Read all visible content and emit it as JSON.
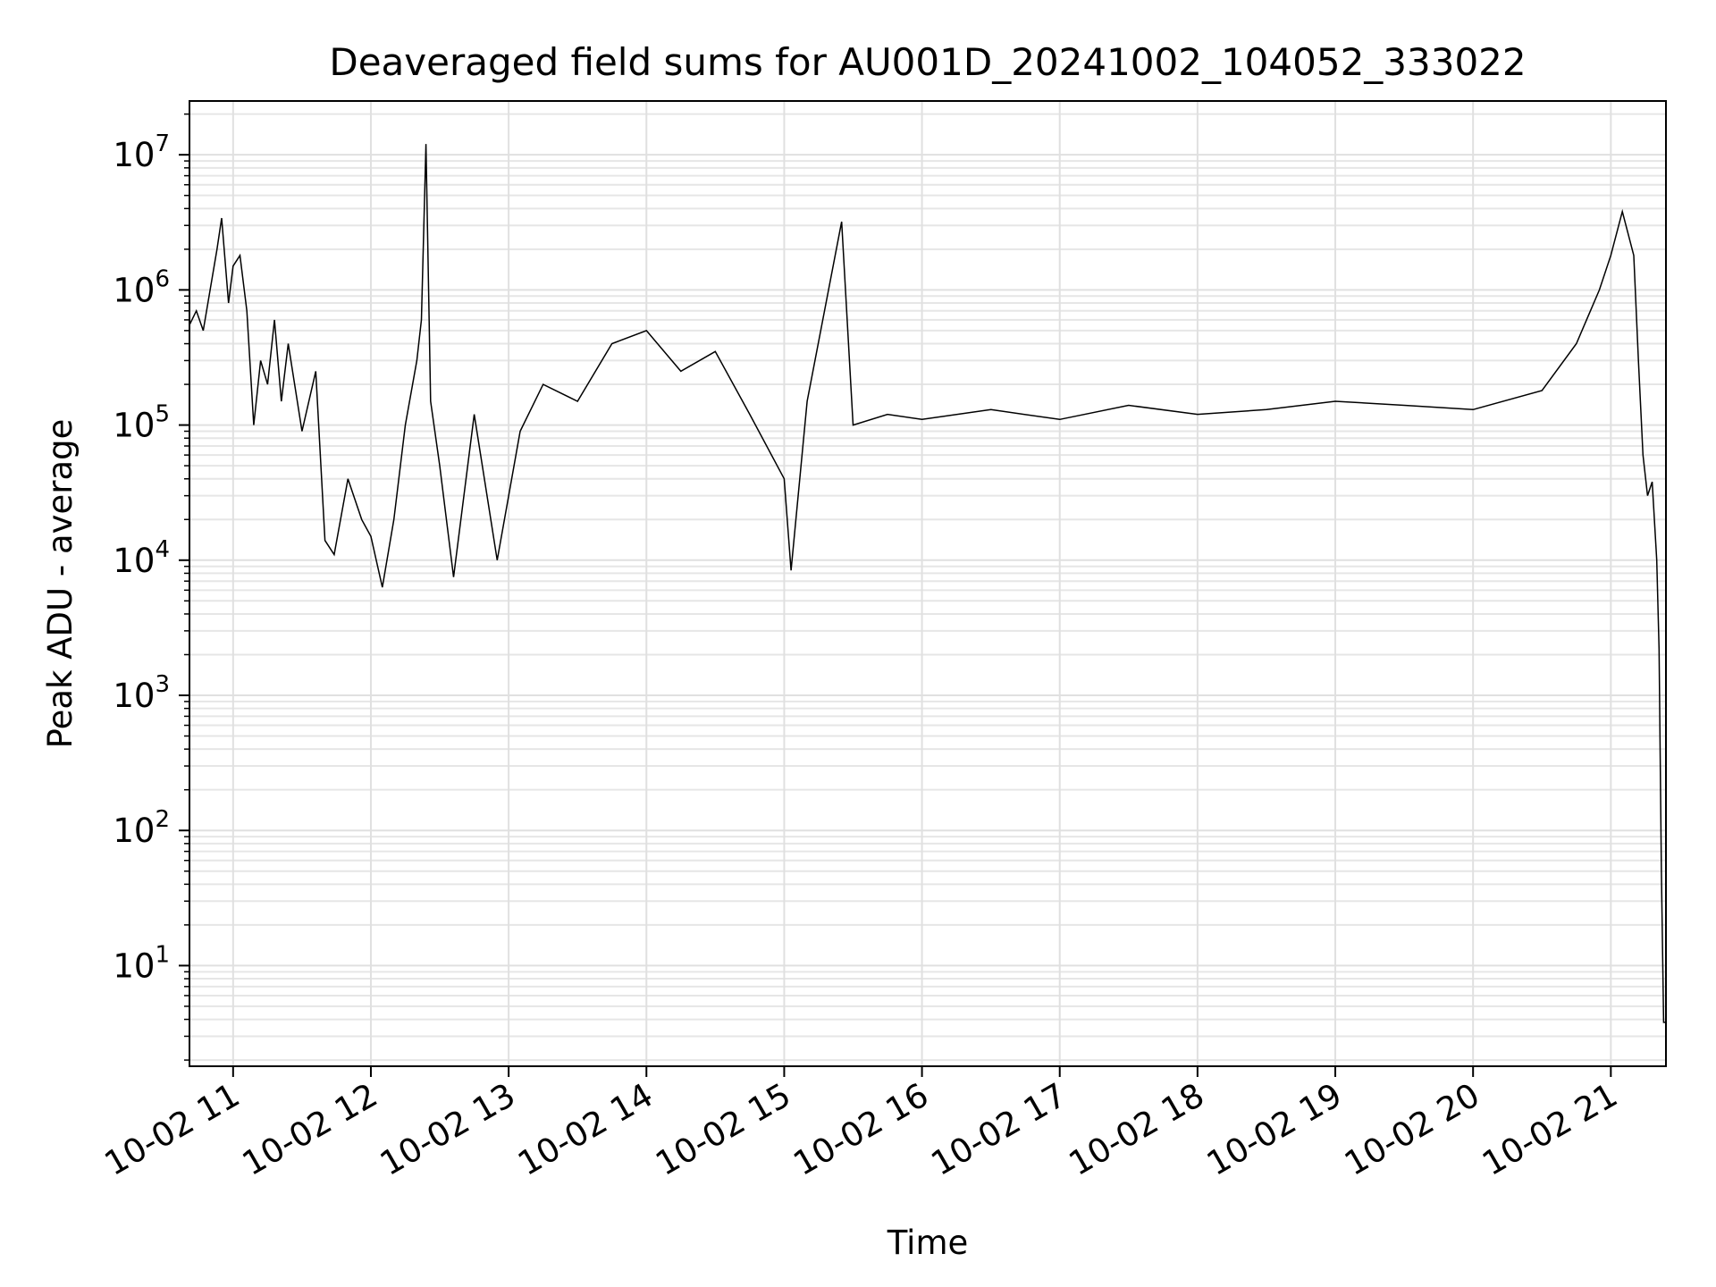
{
  "chart_data": {
    "type": "line",
    "title": "Deaveraged field sums for AU001D_20241002_104052_333022",
    "xlabel": "Time",
    "ylabel": "Peak ADU - average",
    "yscale": "log",
    "grid": true,
    "grid_minor": true,
    "xlim": [
      "2024-10-02 10:41",
      "2024-10-02 21:24"
    ],
    "ylim": [
      1.8,
      25000000
    ],
    "x_ticks": [
      "2024-10-02 11:00",
      "2024-10-02 12:00",
      "2024-10-02 13:00",
      "2024-10-02 14:00",
      "2024-10-02 15:00",
      "2024-10-02 16:00",
      "2024-10-02 17:00",
      "2024-10-02 18:00",
      "2024-10-02 19:00",
      "2024-10-02 20:00",
      "2024-10-02 21:00"
    ],
    "x_tick_labels": [
      "10-02 11",
      "10-02 12",
      "10-02 13",
      "10-02 14",
      "10-02 15",
      "10-02 16",
      "10-02 17",
      "10-02 18",
      "10-02 19",
      "10-02 20",
      "10-02 21"
    ],
    "y_ticks": [
      {
        "base": "10",
        "exp": "1",
        "value": 10
      },
      {
        "base": "10",
        "exp": "2",
        "value": 100
      },
      {
        "base": "10",
        "exp": "3",
        "value": 1000
      },
      {
        "base": "10",
        "exp": "4",
        "value": 10000
      },
      {
        "base": "10",
        "exp": "5",
        "value": 100000
      },
      {
        "base": "10",
        "exp": "6",
        "value": 1000000
      },
      {
        "base": "10",
        "exp": "7",
        "value": 10000000
      }
    ],
    "series": [
      {
        "color": "#000000",
        "points": [
          [
            "2024-10-02 10:41",
            550000
          ],
          [
            "2024-10-02 10:44",
            700000
          ],
          [
            "2024-10-02 10:47",
            500000
          ],
          [
            "2024-10-02 10:50",
            1000000
          ],
          [
            "2024-10-02 10:53",
            2000000
          ],
          [
            "2024-10-02 10:55",
            3400000
          ],
          [
            "2024-10-02 10:58",
            800000
          ],
          [
            "2024-10-02 11:00",
            1500000
          ],
          [
            "2024-10-02 11:03",
            1800000
          ],
          [
            "2024-10-02 11:06",
            700000
          ],
          [
            "2024-10-02 11:09",
            100000
          ],
          [
            "2024-10-02 11:12",
            300000
          ],
          [
            "2024-10-02 11:15",
            200000
          ],
          [
            "2024-10-02 11:18",
            600000
          ],
          [
            "2024-10-02 11:21",
            150000
          ],
          [
            "2024-10-02 11:24",
            400000
          ],
          [
            "2024-10-02 11:30",
            90000
          ],
          [
            "2024-10-02 11:36",
            250000
          ],
          [
            "2024-10-02 11:40",
            14000
          ],
          [
            "2024-10-02 11:44",
            11000
          ],
          [
            "2024-10-02 11:50",
            40000
          ],
          [
            "2024-10-02 11:56",
            20000
          ],
          [
            "2024-10-02 12:00",
            15000
          ],
          [
            "2024-10-02 12:05",
            6300
          ],
          [
            "2024-10-02 12:10",
            20000
          ],
          [
            "2024-10-02 12:15",
            100000
          ],
          [
            "2024-10-02 12:20",
            300000
          ],
          [
            "2024-10-02 12:22",
            600000
          ],
          [
            "2024-10-02 12:24",
            12000000
          ],
          [
            "2024-10-02 12:26",
            150000
          ],
          [
            "2024-10-02 12:30",
            50000
          ],
          [
            "2024-10-02 12:36",
            7500
          ],
          [
            "2024-10-02 12:45",
            120000
          ],
          [
            "2024-10-02 12:55",
            10000
          ],
          [
            "2024-10-02 13:05",
            90000
          ],
          [
            "2024-10-02 13:15",
            200000
          ],
          [
            "2024-10-02 13:30",
            150000
          ],
          [
            "2024-10-02 13:45",
            400000
          ],
          [
            "2024-10-02 14:00",
            500000
          ],
          [
            "2024-10-02 14:15",
            250000
          ],
          [
            "2024-10-02 14:30",
            350000
          ],
          [
            "2024-10-02 14:45",
            120000
          ],
          [
            "2024-10-02 15:00",
            40000
          ],
          [
            "2024-10-02 15:03",
            8400
          ],
          [
            "2024-10-02 15:10",
            150000
          ],
          [
            "2024-10-02 15:25",
            3200000
          ],
          [
            "2024-10-02 15:30",
            100000
          ],
          [
            "2024-10-02 15:45",
            120000
          ],
          [
            "2024-10-02 16:00",
            110000
          ],
          [
            "2024-10-02 16:30",
            130000
          ],
          [
            "2024-10-02 17:00",
            110000
          ],
          [
            "2024-10-02 17:30",
            140000
          ],
          [
            "2024-10-02 18:00",
            120000
          ],
          [
            "2024-10-02 18:30",
            130000
          ],
          [
            "2024-10-02 19:00",
            150000
          ],
          [
            "2024-10-02 19:30",
            140000
          ],
          [
            "2024-10-02 20:00",
            130000
          ],
          [
            "2024-10-02 20:30",
            180000
          ],
          [
            "2024-10-02 20:45",
            400000
          ],
          [
            "2024-10-02 20:55",
            1000000
          ],
          [
            "2024-10-02 21:00",
            1800000
          ],
          [
            "2024-10-02 21:05",
            3800000
          ],
          [
            "2024-10-02 21:10",
            1800000
          ],
          [
            "2024-10-02 21:12",
            300000
          ],
          [
            "2024-10-02 21:14",
            60000
          ],
          [
            "2024-10-02 21:16",
            30000
          ],
          [
            "2024-10-02 21:18",
            38000
          ],
          [
            "2024-10-02 21:20",
            10000
          ],
          [
            "2024-10-02 21:21",
            2200
          ],
          [
            "2024-10-02 21:22",
            50
          ],
          [
            "2024-10-02 21:23",
            3.8
          ],
          [
            "2024-10-02 21:24",
            3.8
          ]
        ]
      }
    ]
  }
}
